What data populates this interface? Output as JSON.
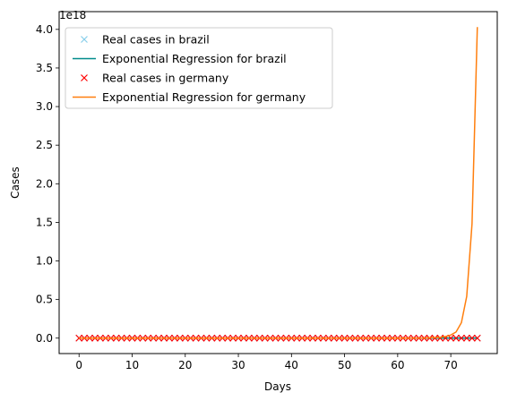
{
  "chart_data": {
    "type": "line",
    "title": "",
    "xlabel": "Days",
    "ylabel": "Cases",
    "y_offset_label": "1e18",
    "xlim": [
      -3.75,
      78.75
    ],
    "ylim": [
      -0.2,
      4.23
    ],
    "x_ticks": [
      0,
      10,
      20,
      30,
      40,
      50,
      60,
      70
    ],
    "y_ticks": [
      0.0,
      0.5,
      1.0,
      1.5,
      2.0,
      2.5,
      3.0,
      3.5,
      4.0
    ],
    "y_tick_labels": [
      "0.0",
      "0.5",
      "1.0",
      "1.5",
      "2.0",
      "2.5",
      "3.0",
      "3.5",
      "4.0"
    ],
    "grid": false,
    "legend_position": "top-left",
    "series": [
      {
        "name": "Real cases in brazil",
        "kind": "scatter",
        "marker": "x",
        "color": "#87ceeb",
        "x_range": [
          0,
          75
        ],
        "y_constant": 0.0
      },
      {
        "name": "Exponential Regression for brazil",
        "kind": "line",
        "color": "#008b8b",
        "x_range": [
          0,
          75
        ],
        "y_constant": 0.0
      },
      {
        "name": "Real cases in germany",
        "kind": "scatter",
        "marker": "x",
        "color": "#ff0000",
        "x_range": [
          0,
          75
        ],
        "y_constant": 0.0
      },
      {
        "name": "Exponential Regression for germany",
        "kind": "line",
        "color": "#ff7f0e",
        "x": [
          0,
          10,
          20,
          30,
          40,
          50,
          60,
          65,
          68,
          69,
          70,
          71,
          72,
          73,
          74,
          75
        ],
        "y": [
          0,
          0,
          0,
          0,
          0,
          0,
          0,
          0.001,
          0.01,
          0.02,
          0.04,
          0.08,
          0.2,
          0.54,
          1.48,
          4.03
        ]
      }
    ]
  }
}
